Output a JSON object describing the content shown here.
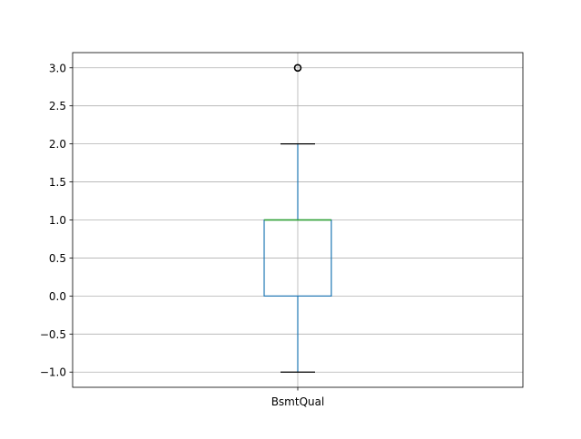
{
  "chart_data": {
    "type": "box",
    "title": "",
    "xlabel": "",
    "ylabel": "",
    "categories": [
      "BsmtQual"
    ],
    "ylim": [
      -1.2,
      3.2
    ],
    "yticks": [
      -1.0,
      -0.5,
      0.0,
      0.5,
      1.0,
      1.5,
      2.0,
      2.5,
      3.0
    ],
    "ytick_labels": [
      "−1.0",
      "−0.5",
      "0.0",
      "0.5",
      "1.0",
      "1.5",
      "2.0",
      "2.5",
      "3.0"
    ],
    "grid": true,
    "boxes": [
      {
        "category": "BsmtQual",
        "whisker_low": -1.0,
        "q1": 0.0,
        "median": 1.0,
        "q3": 1.0,
        "whisker_high": 2.0,
        "outliers": [
          3.0
        ]
      }
    ],
    "colors": {
      "box": "#1f77b4",
      "median": "#2ca02c",
      "caps": "#000000",
      "grid": "#b0b0b0",
      "outlier_edge": "#000000"
    }
  }
}
